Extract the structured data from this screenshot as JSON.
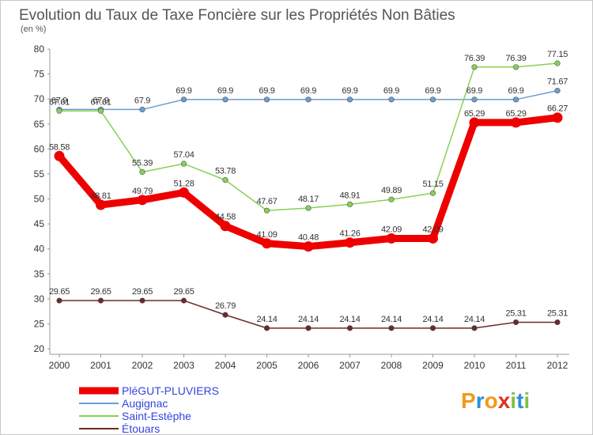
{
  "chart_data": {
    "type": "line",
    "title": "Evolution du Taux de Taxe Foncière sur les Propriétés Non Bâties",
    "subtitle": "(en %)",
    "x": [
      "2000",
      "2001",
      "2002",
      "2003",
      "2004",
      "2005",
      "2006",
      "2007",
      "2008",
      "2009",
      "2010",
      "2011",
      "2012"
    ],
    "ylim": [
      20,
      80
    ],
    "yticks": [
      20,
      25,
      30,
      35,
      40,
      45,
      50,
      55,
      60,
      65,
      70,
      75,
      80
    ],
    "grid": false,
    "legend_position": "bottom-left",
    "series": [
      {
        "name": "PléGUT-PLUVIERS",
        "color": "#ee0000",
        "values": [
          58.58,
          48.81,
          49.79,
          51.28,
          44.58,
          41.09,
          40.48,
          41.26,
          42.09,
          42.09,
          65.29,
          65.29,
          66.27
        ],
        "labels": [
          "58.58",
          "48.81",
          "49.79",
          "51.28",
          "44.58",
          "41.09",
          "40.48",
          "41.26",
          "42.09",
          "42.09",
          "65.29",
          "65.29",
          "66.27"
        ]
      },
      {
        "name": "Augignac",
        "color": "#6a9fcf",
        "values": [
          67.9,
          67.9,
          67.9,
          69.9,
          69.9,
          69.9,
          69.9,
          69.9,
          69.9,
          69.9,
          69.9,
          69.9,
          71.67
        ],
        "labels": [
          "67.9",
          "67.9",
          "67.9",
          "69.9",
          "69.9",
          "69.9",
          "69.9",
          "69.9",
          "69.9",
          "69.9",
          "69.9",
          "69.9",
          "71.67"
        ]
      },
      {
        "name": "Saint-Estèphe",
        "color": "#88d055",
        "values": [
          67.61,
          67.61,
          55.39,
          57.04,
          53.78,
          47.67,
          48.17,
          48.91,
          49.89,
          51.15,
          76.39,
          76.39,
          77.15
        ],
        "labels": [
          "67.61",
          "67.61",
          "55.39",
          "57.04",
          "53.78",
          "47.67",
          "48.17",
          "48.91",
          "49.89",
          "51.15",
          "76.39",
          "76.39",
          "77.15"
        ]
      },
      {
        "name": "Étouars",
        "color": "#6b2a2a",
        "values": [
          29.65,
          29.65,
          29.65,
          29.65,
          26.79,
          24.14,
          24.14,
          24.14,
          24.14,
          24.14,
          24.14,
          25.31,
          25.31
        ],
        "labels": [
          "29.65",
          "29.65",
          "29.65",
          "29.65",
          "26.79",
          "24.14",
          "24.14",
          "24.14",
          "24.14",
          "24.14",
          "24.14",
          "25.31",
          "25.31"
        ]
      }
    ]
  },
  "logo": {
    "letters": [
      "P",
      "r",
      "o",
      "x",
      "i",
      "t",
      "i"
    ],
    "colors": [
      "#f29a1a",
      "#2f8fd9",
      "#f29a1a",
      "#e0301e",
      "#7fc241",
      "#2f8fd9",
      "#7fc241"
    ]
  }
}
